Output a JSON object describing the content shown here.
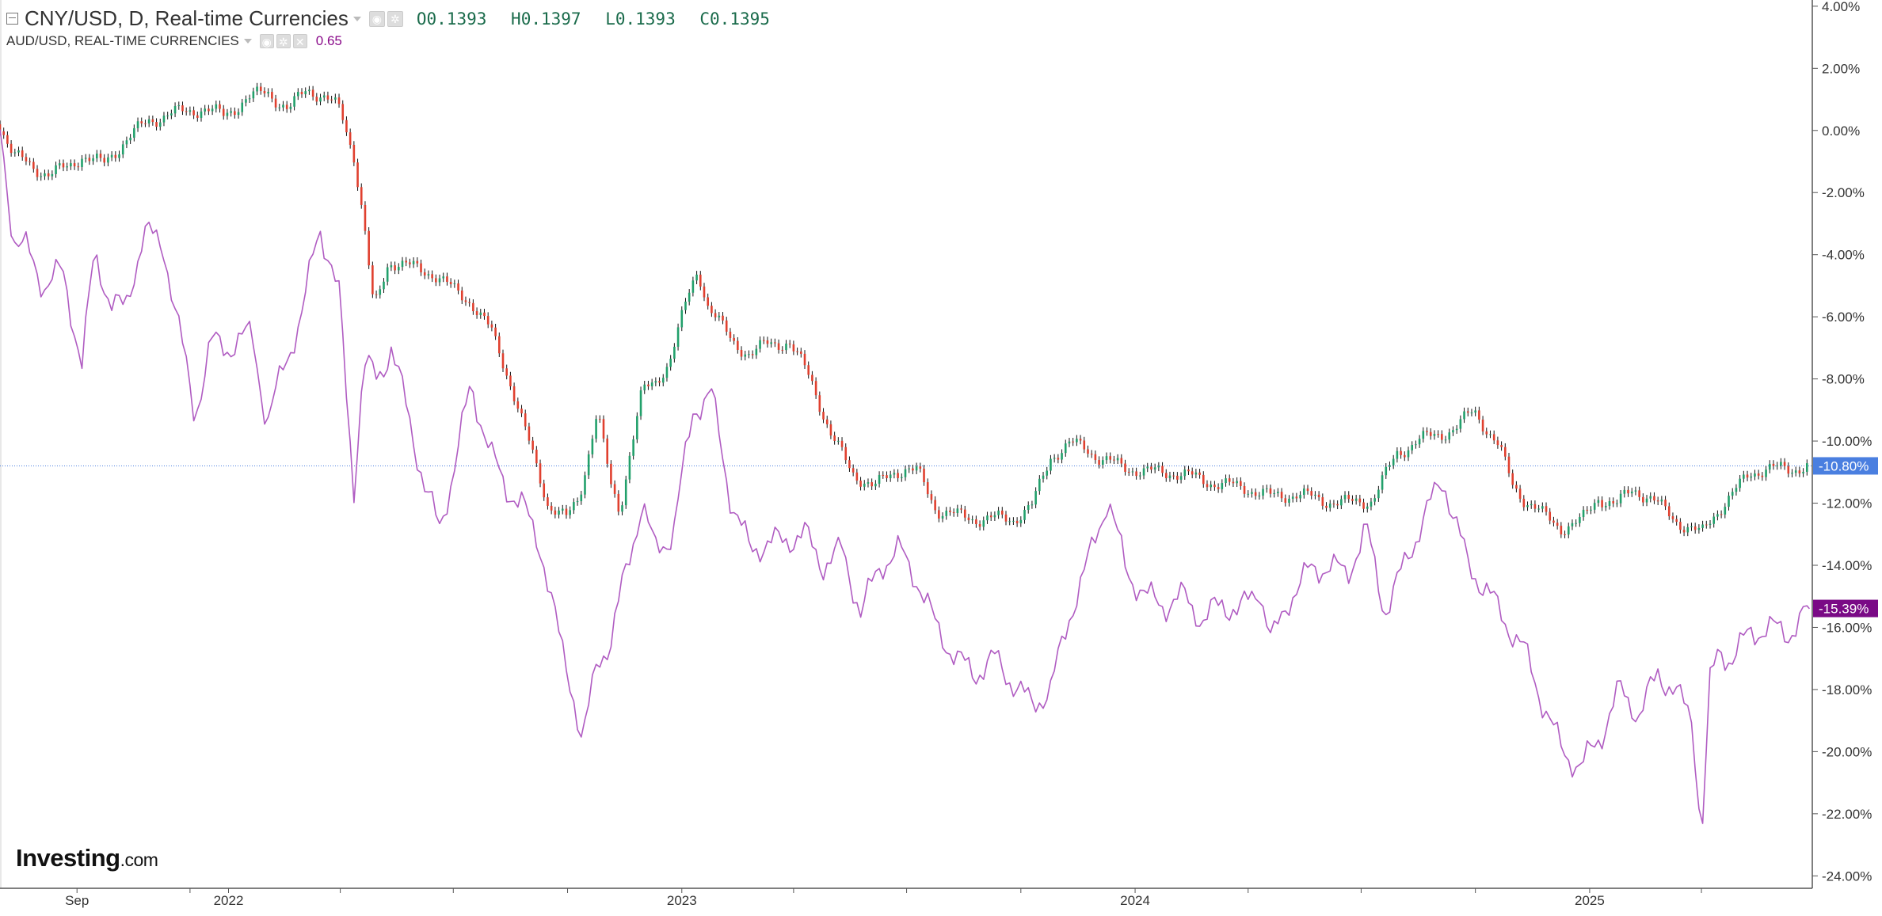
{
  "legend": {
    "main_title": "CNY/USD, D, Real-time Currencies",
    "ohlc": {
      "open": "O0.1393",
      "high": "H0.1397",
      "low": "L0.1393",
      "close": "C0.1395"
    },
    "secondary_title": "AUD/USD, REAL-TIME CURRENCIES",
    "secondary_value": "0.65"
  },
  "logo": {
    "brand": "Investing",
    "suffix": ".com"
  },
  "colors": {
    "cny_up": "#22a06b",
    "cny_down": "#e0402f",
    "aud_line": "#b05cc2",
    "cny_badge": "#4a7fe0",
    "aud_badge": "#7a0a86",
    "crosshair": "#4a7fe0"
  },
  "icons": [
    "collapse-icon",
    "eye-icon",
    "settings-icon",
    "close-icon"
  ],
  "chart_data": {
    "type": "line",
    "ylabel": "",
    "yscale": "percent change",
    "ylim": [
      -24.4,
      4.2
    ],
    "yticks": [
      "4.00%",
      "2.00%",
      "0.00%",
      "-2.00%",
      "-4.00%",
      "-6.00%",
      "-8.00%",
      "-10.00%",
      "-12.00%",
      "-14.00%",
      "-16.00%",
      "-18.00%",
      "-20.00%",
      "-22.00%",
      "-24.00%"
    ],
    "ytick_values": [
      4,
      2,
      0,
      -2,
      -4,
      -6,
      -8,
      -10,
      -12,
      -14,
      -16,
      -18,
      -20,
      -22,
      -24
    ],
    "xlim": [
      "2021-07-01",
      "2025-06-28"
    ],
    "xticks": [
      {
        "label": "Sep",
        "date": "2021-09-01"
      },
      {
        "label": "2022",
        "date": "2022-01-01"
      },
      {
        "label": "2023",
        "date": "2023-01-01"
      },
      {
        "label": "2024",
        "date": "2024-01-01"
      },
      {
        "label": "2025",
        "date": "2025-01-01"
      }
    ],
    "minor_tick_dates": [
      "2021-09-01",
      "2021-12-01",
      "2022-01-01",
      "2022-04-01",
      "2022-07-01",
      "2022-10-01",
      "2023-01-01",
      "2023-04-01",
      "2023-07-01",
      "2023-10-01",
      "2024-01-01",
      "2024-04-01",
      "2024-07-01",
      "2024-10-01",
      "2025-01-01",
      "2025-04-01"
    ],
    "grid": false,
    "legend_position": "top-left",
    "series": [
      {
        "name": "CNY/USD, D, Real-time Currencies",
        "style": "candlestick",
        "last_label": "-10.80%",
        "last_value": -10.8,
        "x": [
          "2021-07-01",
          "2021-07-12",
          "2021-07-28",
          "2021-08-10",
          "2021-08-25",
          "2021-09-05",
          "2021-09-22",
          "2021-10-08",
          "2021-10-28",
          "2021-11-12",
          "2021-11-26",
          "2021-12-10",
          "2021-12-28",
          "2022-01-12",
          "2022-02-01",
          "2022-02-18",
          "2022-03-05",
          "2022-03-20",
          "2022-04-01",
          "2022-04-12",
          "2022-04-20",
          "2022-04-28",
          "2022-05-10",
          "2022-05-28",
          "2022-06-15",
          "2022-06-30",
          "2022-07-15",
          "2022-08-01",
          "2022-08-15",
          "2022-09-01",
          "2022-09-15",
          "2022-09-30",
          "2022-10-10",
          "2022-10-25",
          "2022-11-05",
          "2022-11-12",
          "2022-11-20",
          "2022-11-30",
          "2022-12-10",
          "2022-12-22",
          "2023-01-05",
          "2023-01-14",
          "2023-01-22",
          "2023-02-10",
          "2023-02-25",
          "2023-03-10",
          "2023-03-28",
          "2023-04-15",
          "2023-05-01",
          "2023-05-18",
          "2023-06-05",
          "2023-06-20",
          "2023-06-30",
          "2023-07-10",
          "2023-07-25",
          "2023-08-10",
          "2023-08-25",
          "2023-09-10",
          "2023-09-25",
          "2023-10-10",
          "2023-10-25",
          "2023-11-10",
          "2023-11-22",
          "2023-12-05",
          "2023-12-20",
          "2024-01-10",
          "2024-01-31",
          "2024-02-20",
          "2024-03-10",
          "2024-03-30",
          "2024-04-20",
          "2024-05-10",
          "2024-05-30",
          "2024-06-20",
          "2024-07-10",
          "2024-07-30",
          "2024-08-15",
          "2024-08-31",
          "2024-09-15",
          "2024-09-30",
          "2024-10-10",
          "2024-10-20",
          "2024-10-31",
          "2024-11-10",
          "2024-11-25",
          "2024-12-10",
          "2024-12-25",
          "2025-01-08",
          "2025-01-22",
          "2025-02-05",
          "2025-02-20",
          "2025-03-05",
          "2025-03-20",
          "2025-04-01",
          "2025-04-10",
          "2025-04-25",
          "2025-05-10",
          "2025-05-25",
          "2025-06-10",
          "2025-06-27"
        ],
        "values": [
          0.2,
          -0.8,
          -1.2,
          -1.4,
          -1.2,
          -0.8,
          -1.1,
          -0.4,
          0.3,
          0.5,
          0.6,
          0.7,
          0.5,
          0.9,
          1.3,
          0.6,
          1.4,
          1.0,
          0.7,
          -0.8,
          -3.0,
          -5.8,
          -4.2,
          -4.4,
          -4.6,
          -5.1,
          -5.5,
          -6.5,
          -8.0,
          -10.2,
          -12.0,
          -12.5,
          -11.9,
          -9.0,
          -11.5,
          -12.3,
          -10.4,
          -8.4,
          -8.2,
          -7.4,
          -5.5,
          -4.5,
          -5.6,
          -6.8,
          -7.2,
          -6.9,
          -6.8,
          -8.0,
          -9.8,
          -11.0,
          -11.5,
          -11.0,
          -10.9,
          -11.0,
          -12.2,
          -12.4,
          -12.5,
          -12.5,
          -12.5,
          -12.1,
          -10.5,
          -10.1,
          -10.2,
          -10.6,
          -10.8,
          -11.0,
          -11.0,
          -11.2,
          -11.4,
          -11.5,
          -11.8,
          -11.7,
          -11.9,
          -12.0,
          -11.9,
          -10.4,
          -10.0,
          -9.8,
          -9.6,
          -9.0,
          -9.6,
          -10.2,
          -11.4,
          -11.9,
          -12.4,
          -12.8,
          -12.6,
          -11.8,
          -12.1,
          -11.5,
          -11.9,
          -12.3,
          -12.8,
          -13.0,
          -12.4,
          -11.8,
          -11.0,
          -10.9,
          -10.9,
          -10.8
        ]
      },
      {
        "name": "AUD/USD, REAL-TIME CURRENCIES",
        "style": "line",
        "last_label": "-15.39%",
        "last_value": -15.39,
        "x": [
          "2021-07-01",
          "2021-07-12",
          "2021-07-22",
          "2021-08-05",
          "2021-08-20",
          "2021-09-05",
          "2021-09-15",
          "2021-09-28",
          "2021-10-10",
          "2021-10-25",
          "2021-11-10",
          "2021-11-25",
          "2021-12-05",
          "2021-12-18",
          "2022-01-01",
          "2022-01-20",
          "2022-02-01",
          "2022-02-15",
          "2022-03-01",
          "2022-03-15",
          "2022-04-01",
          "2022-04-05",
          "2022-04-12",
          "2022-04-20",
          "2022-05-01",
          "2022-05-12",
          "2022-05-25",
          "2022-06-08",
          "2022-06-20",
          "2022-07-01",
          "2022-07-15",
          "2022-08-01",
          "2022-08-12",
          "2022-08-25",
          "2022-09-10",
          "2022-09-25",
          "2022-10-05",
          "2022-10-13",
          "2022-10-25",
          "2022-11-05",
          "2022-11-15",
          "2022-11-30",
          "2022-12-10",
          "2022-12-25",
          "2023-01-10",
          "2023-01-25",
          "2023-02-10",
          "2023-02-25",
          "2023-03-10",
          "2023-03-25",
          "2023-04-10",
          "2023-04-25",
          "2023-05-10",
          "2023-05-25",
          "2023-06-10",
          "2023-06-25",
          "2023-07-10",
          "2023-07-25",
          "2023-08-10",
          "2023-08-25",
          "2023-09-10",
          "2023-09-25",
          "2023-10-10",
          "2023-10-25",
          "2023-11-10",
          "2023-11-25",
          "2023-12-10",
          "2023-12-25",
          "2024-01-10",
          "2024-01-25",
          "2024-02-10",
          "2024-02-25",
          "2024-03-10",
          "2024-03-25",
          "2024-04-10",
          "2024-04-20",
          "2024-05-05",
          "2024-05-20",
          "2024-06-05",
          "2024-06-20",
          "2024-07-05",
          "2024-07-20",
          "2024-08-05",
          "2024-08-20",
          "2024-09-05",
          "2024-09-25",
          "2024-10-10",
          "2024-10-25",
          "2024-11-10",
          "2024-11-25",
          "2024-12-10",
          "2024-12-25",
          "2025-01-10",
          "2025-01-25",
          "2025-02-10",
          "2025-02-25",
          "2025-03-10",
          "2025-03-25",
          "2025-04-01",
          "2025-04-08",
          "2025-04-15",
          "2025-04-25",
          "2025-05-10",
          "2025-05-25",
          "2025-06-10",
          "2025-06-27"
        ],
        "values": [
          0.0,
          -3.5,
          -3.8,
          -5.0,
          -4.5,
          -7.5,
          -4.0,
          -5.5,
          -5.8,
          -3.2,
          -3.8,
          -7.0,
          -9.2,
          -6.8,
          -7.0,
          -6.5,
          -9.5,
          -7.5,
          -6.0,
          -3.0,
          -5.5,
          -8.0,
          -11.5,
          -7.5,
          -8.0,
          -7.0,
          -9.0,
          -11.5,
          -12.8,
          -11.0,
          -8.2,
          -10.5,
          -11.5,
          -12.0,
          -13.5,
          -16.5,
          -18.0,
          -19.8,
          -17.0,
          -16.5,
          -14.5,
          -12.0,
          -13.5,
          -13.0,
          -9.0,
          -8.5,
          -12.0,
          -13.5,
          -13.3,
          -13.2,
          -13.0,
          -14.0,
          -13.5,
          -15.5,
          -14.0,
          -13.5,
          -14.5,
          -16.0,
          -17.0,
          -17.5,
          -17.0,
          -17.8,
          -18.5,
          -18.0,
          -15.5,
          -13.8,
          -11.8,
          -14.2,
          -15.0,
          -15.3,
          -15.0,
          -15.8,
          -15.2,
          -15.5,
          -14.7,
          -16.5,
          -15.0,
          -14.2,
          -14.0,
          -14.3,
          -12.8,
          -15.5,
          -14.0,
          -12.5,
          -11.2,
          -14.0,
          -14.8,
          -15.8,
          -16.8,
          -18.5,
          -20.0,
          -20.5,
          -19.5,
          -18.0,
          -18.8,
          -17.5,
          -18.0,
          -19.0,
          -22.8,
          -17.8,
          -16.8,
          -17.0,
          -16.2,
          -16.0,
          -16.2,
          -15.4
        ]
      }
    ]
  }
}
